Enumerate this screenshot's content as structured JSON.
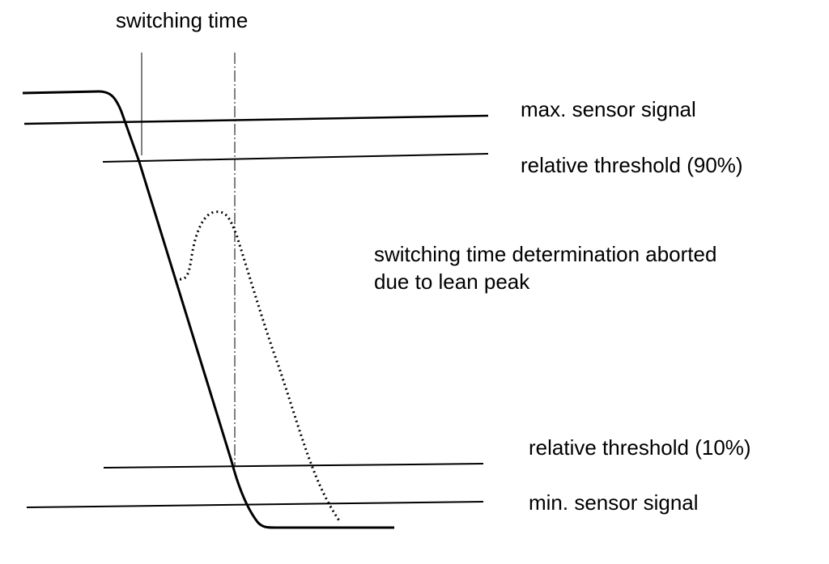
{
  "labels": {
    "switching_time": "switching time",
    "max_signal": "max. sensor signal",
    "threshold_90": "relative threshold (90%)",
    "aborted": [
      "switching time determination aborted",
      "due to lean peak"
    ],
    "threshold_10": "relative threshold (10%)",
    "min_signal": "min. sensor signal"
  }
}
